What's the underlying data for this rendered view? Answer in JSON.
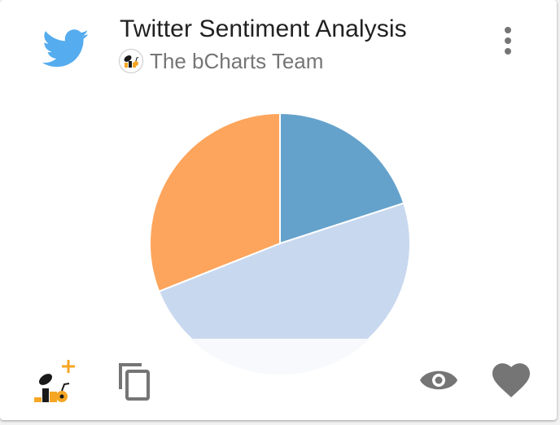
{
  "card": {
    "title": "Twitter Sentiment Analysis",
    "author": "The bCharts Team",
    "brand_icon": "twitter-bird-icon",
    "menu_icon": "more-vert-icon"
  },
  "chart_data": {
    "type": "pie",
    "slices": [
      {
        "value": 20,
        "color": "#64a2cc"
      },
      {
        "value": 49,
        "color": "#c8d8ef"
      },
      {
        "value": 31,
        "color": "#fda55c"
      }
    ]
  },
  "footer": {
    "add_icon": "bcharts-add-icon",
    "copy_icon": "copy-icon",
    "view_icon": "eye-icon",
    "favorite_icon": "heart-icon"
  },
  "colors": {
    "twitter_blue": "#55acee",
    "icon_gray": "#757575",
    "brand_orange": "#f5a623"
  }
}
